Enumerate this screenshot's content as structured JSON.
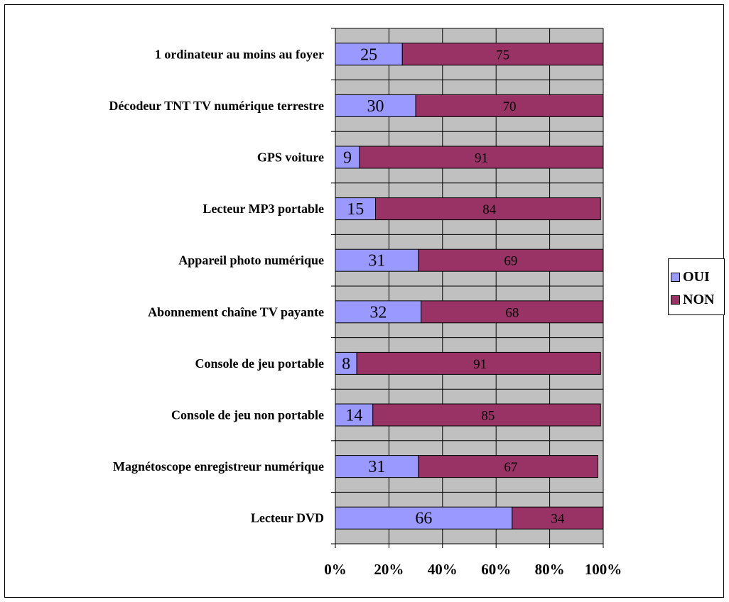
{
  "chart_data": {
    "type": "bar",
    "orientation": "horizontal",
    "stacked": true,
    "percent_stacked": true,
    "categories": [
      "1 ordinateur au moins au foyer",
      "Décodeur TNT TV numérique terrestre",
      "GPS voiture",
      "Lecteur MP3 portable",
      "Appareil photo numérique",
      "Abonnement chaîne TV payante",
      "Console de jeu portable",
      "Console de jeu non portable",
      "Magnétoscope enregistreur numérique",
      "Lecteur DVD"
    ],
    "series": [
      {
        "name": "OUI",
        "color": "#9999ff",
        "values": [
          25,
          30,
          9,
          15,
          31,
          32,
          8,
          14,
          31,
          66
        ]
      },
      {
        "name": "NON",
        "color": "#993366",
        "values": [
          75,
          70,
          91,
          84,
          69,
          68,
          91,
          85,
          67,
          34
        ]
      }
    ],
    "x_ticks": [
      "0%",
      "20%",
      "40%",
      "60%",
      "80%",
      "100%"
    ],
    "xlim": [
      0,
      100
    ],
    "grid": true,
    "plot_background": "#c0c0c0",
    "legend": "right"
  },
  "legend": {
    "oui_label": "OUI",
    "non_label": "NON"
  }
}
